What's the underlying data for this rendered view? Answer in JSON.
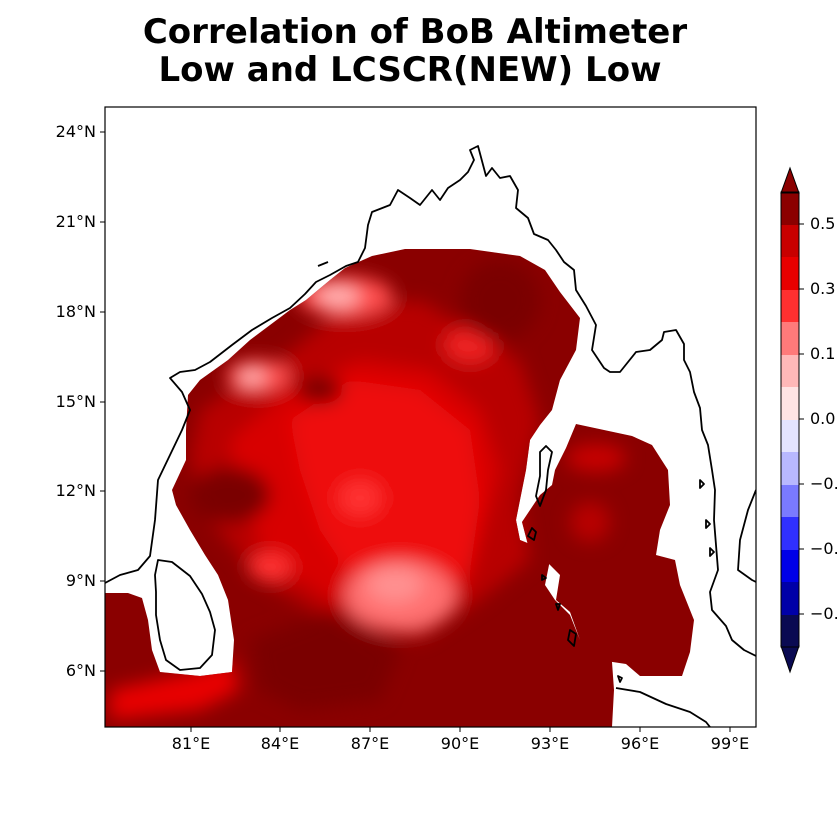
{
  "title": {
    "line1": "Correlation of BoB Altimeter",
    "line2": "Low and LCSCR(NEW) Low"
  },
  "map": {
    "lat_ticks": [
      "24°N",
      "21°N",
      "18°N",
      "15°N",
      "12°N",
      "9°N",
      "6°N"
    ],
    "lon_ticks": [
      "81°E",
      "84°E",
      "87°E",
      "90°E",
      "93°E",
      "96°E",
      "99°E"
    ],
    "lon_range": [
      78,
      99.8
    ],
    "lat_range": [
      4,
      24.8
    ]
  },
  "colorbar": {
    "labels": [
      "0.5",
      "0.3",
      "0.1",
      "0.0",
      "−0.",
      "−0.",
      "−0."
    ],
    "colors": [
      "#0a0a52",
      "#0000a8",
      "#0000e8",
      "#3030ff",
      "#7a7aff",
      "#b8b8ff",
      "#e4e4ff",
      "#ffe4e4",
      "#ffb8b8",
      "#ff7a7a",
      "#ff3030",
      "#e80000",
      "#c80000",
      "#8b0000"
    ]
  },
  "colors": {
    "darkest_red": "#7f0000",
    "dark_red": "#a80000",
    "red": "#d00000",
    "bright_red": "#ee1010",
    "light_red": "#ff7070",
    "pale": "#ffd0d0",
    "coast": "#000000"
  }
}
